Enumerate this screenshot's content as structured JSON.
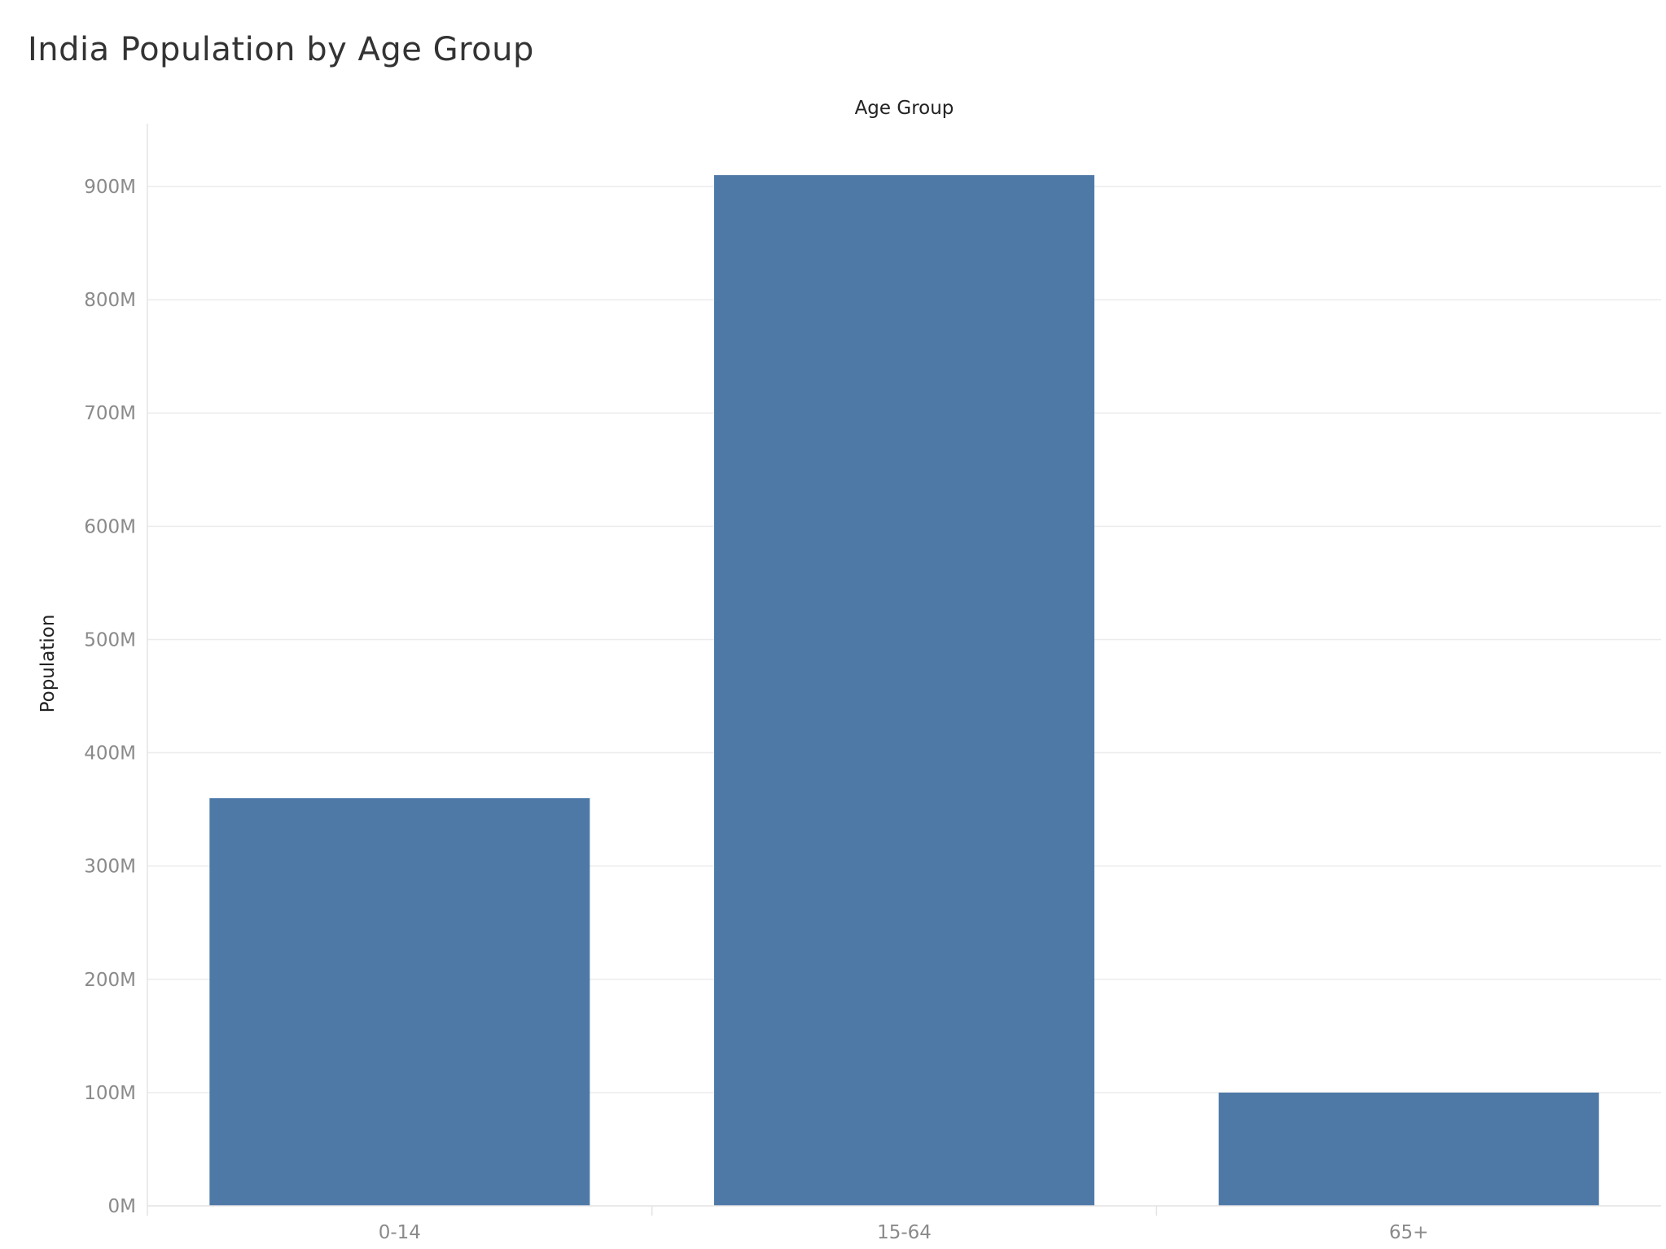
{
  "chart_data": {
    "type": "bar",
    "title": "India Population by Age Group",
    "column_header": "Age Group",
    "ylabel": "Population",
    "categories": [
      "0-14",
      "15-64",
      "65+"
    ],
    "values": [
      360,
      910,
      100
    ],
    "value_unit": "M",
    "ylim": [
      0,
      950
    ],
    "yticks": [
      0,
      100,
      200,
      300,
      400,
      500,
      600,
      700,
      800,
      900
    ],
    "ytick_labels": [
      "0M",
      "100M",
      "200M",
      "300M",
      "400M",
      "500M",
      "600M",
      "700M",
      "800M",
      "900M"
    ],
    "grid": true,
    "bar_color": "#4e79a7"
  }
}
